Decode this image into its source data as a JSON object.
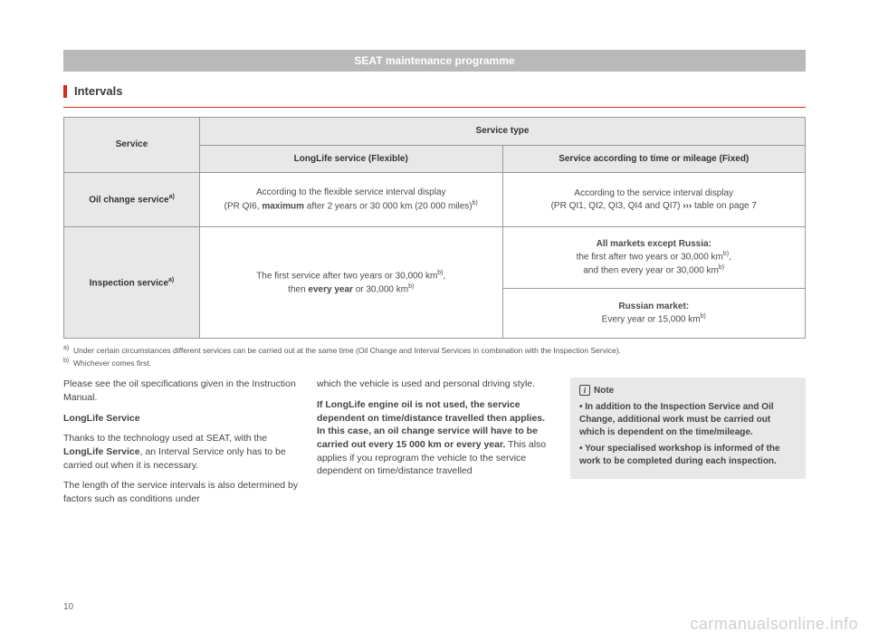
{
  "header": "SEAT maintenance programme",
  "section_title": "Intervals",
  "table": {
    "service_label": "Service",
    "service_type_label": "Service type",
    "col1": "LongLife service (Flexible)",
    "col2": "Service according to time or mileage (Fixed)",
    "row1_label_html": "Oil change service<span class='sup'>a)</span>",
    "row1_c1_html": "According to the flexible service interval display<br>(PR QI6, <b>maximum</b> after 2 years or 30 000 km (20 000 miles)<span class='sup'>b)</span>",
    "row1_c2_html": "According to the service interval display<br>(PR QI1, QI2, QI3, QI4 and QI7) <b>›››</b> table on page 7",
    "row2_label_html": "Inspection service<span class='sup'>a)</span>",
    "row2_c1_html": "The first service after two years or 30,000 km<span class='sup'>b)</span>,<br>then <b>every year</b> or 30,000 km<span class='sup'>b)</span>",
    "row2_c2a_html": "<b>All markets except Russia:</b><br>the first after two years or 30,000 km<span class='sup'>b)</span>,<br>and then every year or 30,000 km<span class='sup'>b)</span>",
    "row2_c2b_html": "<b>Russian market:</b><br>Every year or 15,000 km<span class='sup'>b)</span>"
  },
  "footnotes": {
    "a": "Under certain circumstances different services can be carried out at the same time (Oil Change and Interval Services in combination with the Inspection Service).",
    "b": "Whichever comes first."
  },
  "body": {
    "col1": {
      "p1": "Please see the oil specifications given in the Instruction Manual.",
      "h": "LongLife Service",
      "p2_html": "Thanks to the technology used at SEAT, with the <b>LongLife Service</b>, an Interval Service only has to be carried out when it is necessary.",
      "p3": "The length of the service intervals is also determined by factors such as conditions under"
    },
    "col2": {
      "p1": "which the vehicle is used and personal driving style.",
      "p2_html": "<b>If LongLife engine oil is not used, the service dependent on time/distance travelled then applies. In this case, an oil change service will have to be carried out every 15 000 km or every year.</b> This also applies if you reprogram the vehicle to the service dependent on time/distance travelled"
    },
    "note": {
      "title": "Note",
      "li1": "In addition to the Inspection Service and Oil Change, additional work must be carried out which is dependent on the time/mileage.",
      "li2": "Your specialised workshop is informed of the work to be completed during each inspection."
    }
  },
  "page_number": "10",
  "watermark": "carmanualsonline.info"
}
